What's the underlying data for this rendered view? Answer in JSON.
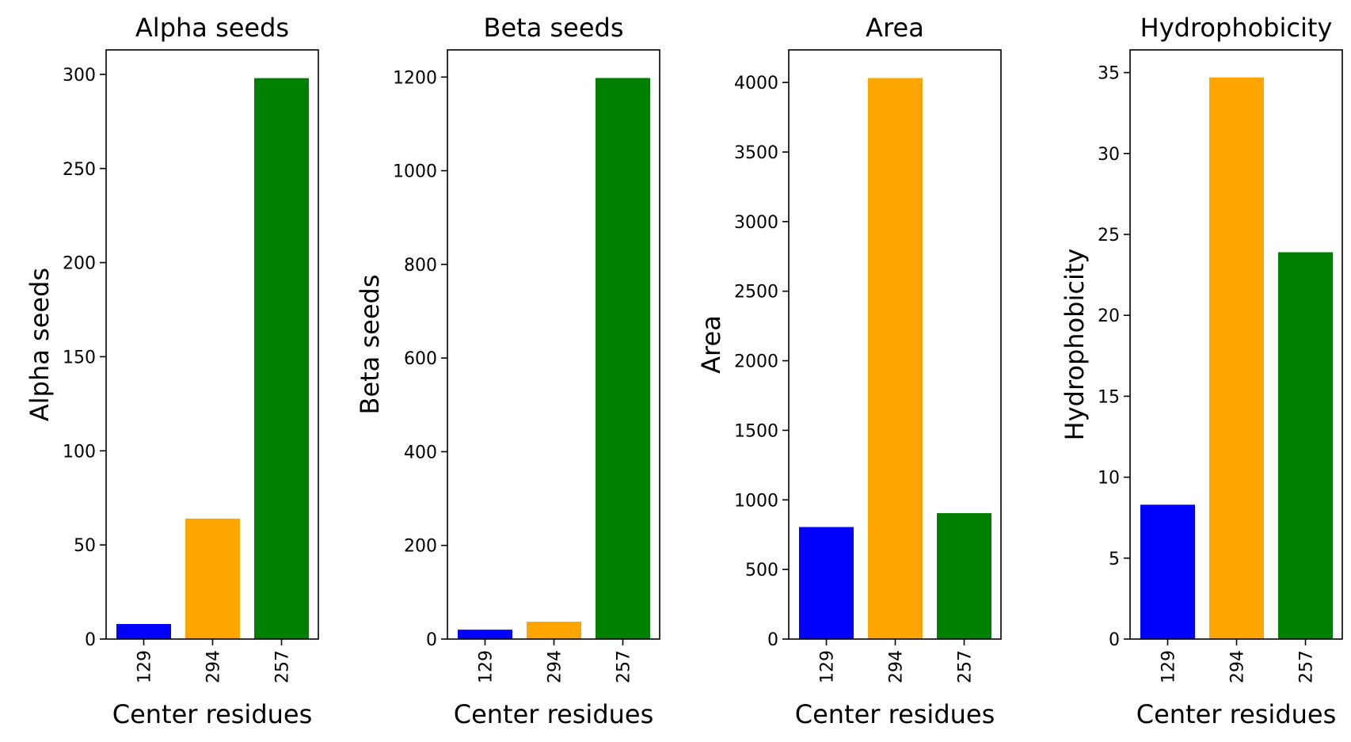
{
  "chart_data": [
    {
      "type": "bar",
      "title": "Alpha seeds",
      "xlabel": "Center residues",
      "ylabel": "Alpha seeds",
      "categories": [
        "129",
        "294",
        "257"
      ],
      "values": [
        8,
        64,
        298
      ],
      "colors": [
        "#0000ff",
        "#ffa500",
        "#008000"
      ],
      "ylim": [
        0,
        313
      ],
      "yticks": [
        0,
        50,
        100,
        150,
        200,
        250,
        300
      ],
      "grid": false
    },
    {
      "type": "bar",
      "title": "Beta seeds",
      "xlabel": "Center residues",
      "ylabel": "Beta seeds",
      "categories": [
        "129",
        "294",
        "257"
      ],
      "values": [
        20,
        37,
        1198
      ],
      "colors": [
        "#0000ff",
        "#ffa500",
        "#008000"
      ],
      "ylim": [
        0,
        1258
      ],
      "yticks": [
        0,
        200,
        400,
        600,
        800,
        1000,
        1200
      ],
      "grid": false
    },
    {
      "type": "bar",
      "title": "Area",
      "xlabel": "Center residues",
      "ylabel": "Area",
      "categories": [
        "129",
        "294",
        "257"
      ],
      "values": [
        805,
        4032,
        905
      ],
      "colors": [
        "#0000ff",
        "#ffa500",
        "#008000"
      ],
      "ylim": [
        0,
        4234
      ],
      "yticks": [
        0,
        500,
        1000,
        1500,
        2000,
        2500,
        3000,
        3500,
        4000
      ],
      "grid": false
    },
    {
      "type": "bar",
      "title": "Hydrophobicity",
      "xlabel": "Center residues",
      "ylabel": "Hydrophobicity",
      "categories": [
        "129",
        "294",
        "257"
      ],
      "values": [
        8.3,
        34.7,
        23.9
      ],
      "colors": [
        "#0000ff",
        "#ffa500",
        "#008000"
      ],
      "ylim": [
        0,
        36.4
      ],
      "yticks": [
        0,
        5,
        10,
        15,
        20,
        25,
        30,
        35
      ],
      "grid": false
    }
  ]
}
